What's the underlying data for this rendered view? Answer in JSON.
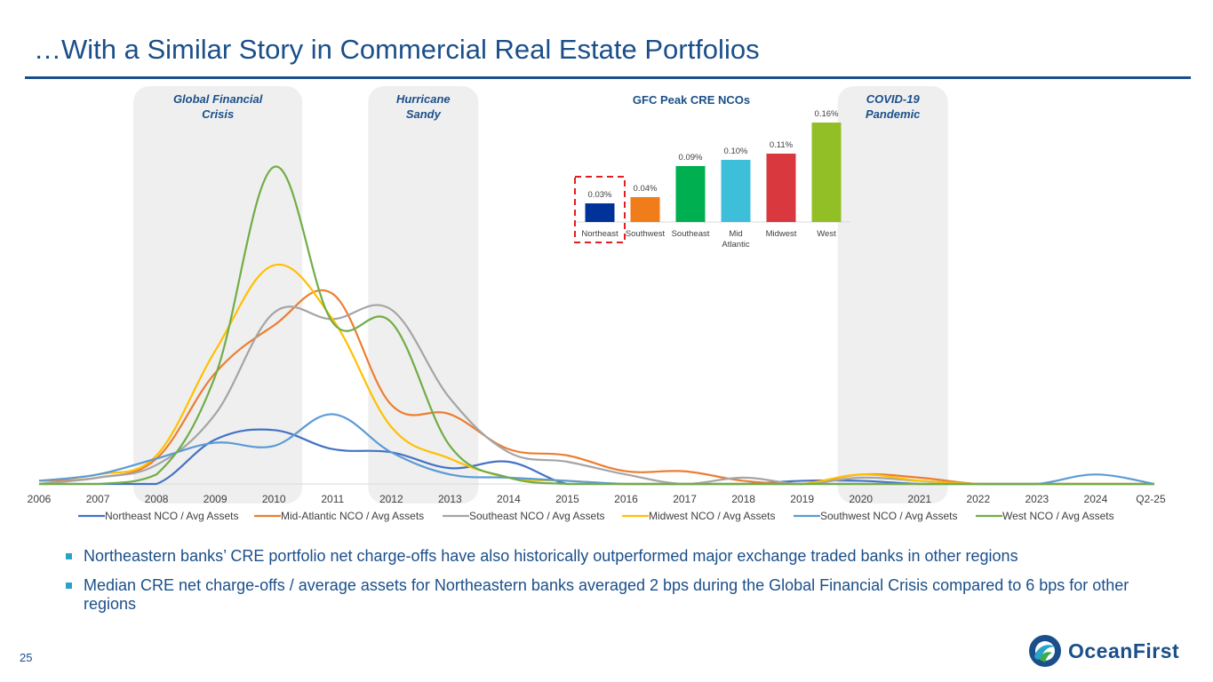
{
  "slide": {
    "title": "…With a Similar Story in Commercial Real Estate Portfolios",
    "page_number": "25",
    "logo": {
      "text": "OceanFirst",
      "icon": "oceanfirst-wave-logo-icon"
    },
    "bullets": [
      "Northeastern banks’ CRE portfolio net charge-offs have also historically outperformed major exchange traded banks in other regions",
      "Median CRE net charge-offs / average assets for Northeastern banks averaged 2 bps during the Global Financial Crisis compared to 6 bps for other regions"
    ],
    "bullet_color": "#2aa3c9",
    "brand_color": "#1b4f8a"
  },
  "chart_data": [
    {
      "type": "line",
      "categories": [
        "2006",
        "2007",
        "2008",
        "2009",
        "2010",
        "2011",
        "2012",
        "2013",
        "2014",
        "2015",
        "2016",
        "2017",
        "2018",
        "2019",
        "2020",
        "2021",
        "2022",
        "2023",
        "2024",
        "Q2-25"
      ],
      "ylim": [
        0,
        1
      ],
      "y_axis_shown": false,
      "grid": false,
      "legend_position": "bottom",
      "shaded_periods": [
        {
          "label": "Global Financial Crisis",
          "from": "2008",
          "to": "2010"
        },
        {
          "label": "Hurricane Sandy",
          "from": "2012",
          "to": "2013"
        },
        {
          "label": "COVID-19 Pandemic",
          "from": "2020",
          "to": "2021"
        }
      ],
      "series": [
        {
          "name": "Northeast NCO / Avg Assets",
          "color": "#4472c4",
          "values": [
            0,
            0,
            0,
            0.14,
            0.17,
            0.11,
            0.1,
            0.05,
            0.07,
            0,
            0,
            0,
            0,
            0.01,
            0.01,
            0,
            0,
            0,
            0,
            0
          ]
        },
        {
          "name": "Mid-Atlantic NCO / Avg Assets",
          "color": "#ed7d31",
          "values": [
            0.01,
            0.02,
            0.08,
            0.35,
            0.5,
            0.6,
            0.25,
            0.22,
            0.11,
            0.09,
            0.04,
            0.04,
            0.01,
            0,
            0.03,
            0.02,
            0,
            0,
            0,
            0
          ]
        },
        {
          "name": "Southeast NCO / Avg Assets",
          "color": "#a5a5a5",
          "values": [
            0,
            0.02,
            0.06,
            0.22,
            0.54,
            0.52,
            0.55,
            0.27,
            0.1,
            0.07,
            0.03,
            0,
            0.02,
            0,
            0.02,
            0.01,
            0,
            0,
            0,
            0
          ]
        },
        {
          "name": "Midwest NCO / Avg Assets",
          "color": "#ffc000",
          "values": [
            0.01,
            0.03,
            0.09,
            0.42,
            0.69,
            0.52,
            0.18,
            0.08,
            0.02,
            0.01,
            0,
            0,
            0,
            0,
            0.03,
            0.01,
            0,
            0,
            0,
            0
          ]
        },
        {
          "name": "Southwest NCO / Avg Assets",
          "color": "#5b9bd5",
          "values": [
            0.01,
            0.03,
            0.08,
            0.13,
            0.12,
            0.22,
            0.1,
            0.03,
            0.02,
            0.01,
            0,
            0,
            0,
            0,
            0,
            0,
            0,
            0,
            0.03,
            0
          ]
        },
        {
          "name": "West NCO / Avg Assets",
          "color": "#70ad47",
          "values": [
            0,
            0,
            0.03,
            0.34,
            1.0,
            0.51,
            0.51,
            0.12,
            0.02,
            0,
            0,
            0,
            0,
            0,
            0,
            0,
            0,
            0,
            0,
            0
          ]
        }
      ]
    },
    {
      "type": "bar",
      "title": "GFC Peak CRE NCOs",
      "categories": [
        "Northeast",
        "Southwest",
        "Southeast",
        "Mid Atlantic",
        "Midwest",
        "West"
      ],
      "values": [
        0.03,
        0.04,
        0.09,
        0.1,
        0.11,
        0.16
      ],
      "data_labels": [
        "0.03%",
        "0.04%",
        "0.09%",
        "0.10%",
        "0.11%",
        "0.16%"
      ],
      "colors": [
        "#003399",
        "#f07c1a",
        "#00b050",
        "#3ebfd9",
        "#d9383e",
        "#93bf26"
      ],
      "highlighted_category": "Northeast",
      "highlight_style": "red dashed box"
    }
  ]
}
